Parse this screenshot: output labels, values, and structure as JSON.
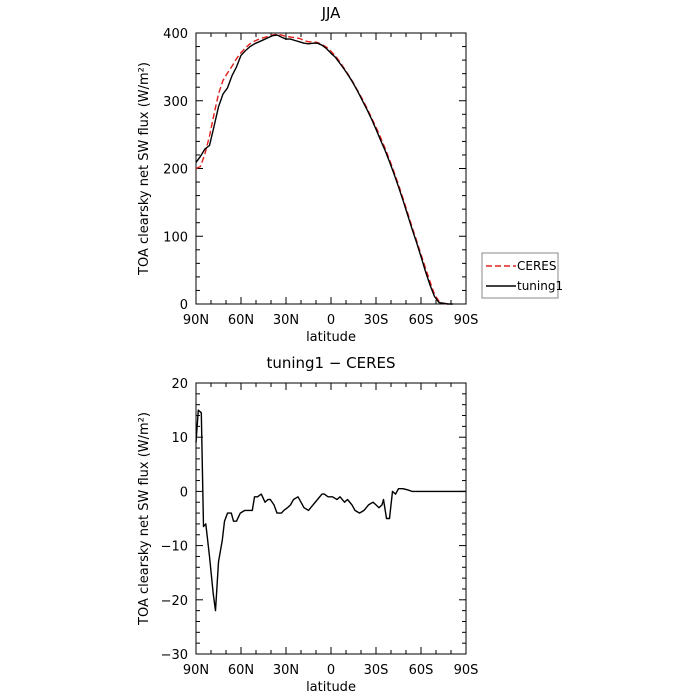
{
  "chart_data": [
    {
      "type": "line",
      "title": "JJA",
      "xlabel": "latitude",
      "ylabel": "TOA clearsky net SW flux (W/m²)",
      "xlim": [
        90,
        -90
      ],
      "ylim": [
        0,
        400
      ],
      "xticks": [
        90,
        60,
        30,
        0,
        -30,
        -60,
        -90
      ],
      "xticklabels": [
        "90N",
        "60N",
        "30N",
        "0",
        "30S",
        "60S",
        "90S"
      ],
      "yticks": [
        0,
        100,
        200,
        300,
        400
      ],
      "yticklabels": [
        "0",
        "100",
        "200",
        "300",
        "400"
      ],
      "grid": false,
      "legend": "right",
      "series": [
        {
          "name": "CERES",
          "color": "#e0201b",
          "dash": "dashed",
          "points": [
            [
              90,
              200
            ],
            [
              87,
              203
            ],
            [
              84,
              222
            ],
            [
              81,
              248
            ],
            [
              78,
              280
            ],
            [
              75,
              310
            ],
            [
              72,
              330
            ],
            [
              69,
              341
            ],
            [
              66,
              351
            ],
            [
              63,
              362
            ],
            [
              60,
              371
            ],
            [
              57,
              378
            ],
            [
              54,
              384
            ],
            [
              51,
              388
            ],
            [
              48,
              391
            ],
            [
              45,
              393
            ],
            [
              42,
              395
            ],
            [
              39,
              397
            ],
            [
              36,
              398
            ],
            [
              33,
              397
            ],
            [
              30,
              395
            ],
            [
              27,
              394
            ],
            [
              24,
              393
            ],
            [
              21,
              392
            ],
            [
              18,
              389
            ],
            [
              15,
              387
            ],
            [
              12,
              387
            ],
            [
              9,
              386
            ],
            [
              6,
              383
            ],
            [
              3,
              379
            ],
            [
              0,
              373
            ],
            [
              -3,
              366
            ],
            [
              -6,
              357
            ],
            [
              -9,
              347
            ],
            [
              -12,
              337
            ],
            [
              -15,
              326
            ],
            [
              -18,
              314
            ],
            [
              -21,
              302
            ],
            [
              -24,
              289
            ],
            [
              -27,
              275
            ],
            [
              -30,
              261
            ],
            [
              -33,
              246
            ],
            [
              -36,
              230
            ],
            [
              -39,
              213
            ],
            [
              -42,
              195
            ],
            [
              -45,
              176
            ],
            [
              -48,
              156
            ],
            [
              -51,
              135
            ],
            [
              -54,
              114
            ],
            [
              -57,
              94
            ],
            [
              -60,
              73
            ],
            [
              -63,
              53
            ],
            [
              -66,
              33
            ],
            [
              -69,
              14
            ],
            [
              -72,
              4
            ],
            [
              -75,
              1
            ],
            [
              -78,
              0
            ],
            [
              -81,
              0
            ]
          ]
        },
        {
          "name": "tuning1",
          "color": "#000000",
          "dash": "solid",
          "points": [
            [
              90,
              209
            ],
            [
              87,
              218
            ],
            [
              84,
              229
            ],
            [
              81,
              234
            ],
            [
              78,
              262
            ],
            [
              75,
              291
            ],
            [
              72,
              310
            ],
            [
              69,
              319
            ],
            [
              66,
              337
            ],
            [
              63,
              350
            ],
            [
              60,
              367
            ],
            [
              57,
              374
            ],
            [
              54,
              380
            ],
            [
              51,
              384
            ],
            [
              48,
              387
            ],
            [
              45,
              390
            ],
            [
              42,
              393
            ],
            [
              39,
              396
            ],
            [
              36,
              397
            ],
            [
              33,
              394
            ],
            [
              30,
              391
            ],
            [
              27,
              391
            ],
            [
              24,
              389
            ],
            [
              21,
              387
            ],
            [
              18,
              385
            ],
            [
              15,
              384
            ],
            [
              12,
              385
            ],
            [
              9,
              385
            ],
            [
              6,
              382
            ],
            [
              3,
              377
            ],
            [
              0,
              370
            ],
            [
              -3,
              364
            ],
            [
              -6,
              355
            ],
            [
              -9,
              346
            ],
            [
              -12,
              336
            ],
            [
              -15,
              325
            ],
            [
              -18,
              313
            ],
            [
              -21,
              300
            ],
            [
              -24,
              287
            ],
            [
              -27,
              273
            ],
            [
              -30,
              258
            ],
            [
              -33,
              242
            ],
            [
              -36,
              227
            ],
            [
              -39,
              210
            ],
            [
              -42,
              192
            ],
            [
              -45,
              173
            ],
            [
              -48,
              153
            ],
            [
              -51,
              132
            ],
            [
              -54,
              111
            ],
            [
              -57,
              91
            ],
            [
              -60,
              70
            ],
            [
              -63,
              48
            ],
            [
              -66,
              28
            ],
            [
              -69,
              11
            ],
            [
              -72,
              2
            ],
            [
              -75,
              1
            ],
            [
              -78,
              0
            ],
            [
              -81,
              0
            ]
          ]
        }
      ]
    },
    {
      "type": "line",
      "title": "tuning1 − CERES",
      "xlabel": "latitude",
      "ylabel": "TOA clearsky net SW flux (W/m²)",
      "xlim": [
        90,
        -90
      ],
      "ylim": [
        -30,
        20
      ],
      "xticks": [
        90,
        60,
        30,
        0,
        -30,
        -60,
        -90
      ],
      "xticklabels": [
        "90N",
        "60N",
        "30N",
        "0",
        "30S",
        "60S",
        "90S"
      ],
      "yticks": [
        -30,
        -20,
        -10,
        0,
        10,
        20
      ],
      "yticklabels": [
        "−30",
        "−20",
        "−10",
        "0",
        "10",
        "20"
      ],
      "grid": false,
      "series": [
        {
          "color": "#000000",
          "dash": "solid",
          "points": [
            [
              90,
              9
            ],
            [
              88.5,
              15
            ],
            [
              86.5,
              14.5
            ],
            [
              85,
              -6.5
            ],
            [
              83.5,
              -6
            ],
            [
              81,
              -12
            ],
            [
              78.5,
              -19
            ],
            [
              77,
              -22
            ],
            [
              75,
              -13
            ],
            [
              72.5,
              -9
            ],
            [
              71,
              -5.5
            ],
            [
              69,
              -4
            ],
            [
              66.5,
              -4
            ],
            [
              65,
              -5.5
            ],
            [
              63,
              -5.5
            ],
            [
              60.5,
              -4
            ],
            [
              57.5,
              -3.5
            ],
            [
              54.5,
              -3.5
            ],
            [
              52.5,
              -3.5
            ],
            [
              51,
              -1
            ],
            [
              49,
              -1
            ],
            [
              46.5,
              -0.5
            ],
            [
              44,
              -2
            ],
            [
              42,
              -1.5
            ],
            [
              40.5,
              -1.5
            ],
            [
              38,
              -2.5
            ],
            [
              36,
              -4
            ],
            [
              33,
              -4
            ],
            [
              31.5,
              -3.5
            ],
            [
              29,
              -3
            ],
            [
              27,
              -2.5
            ],
            [
              25,
              -1.5
            ],
            [
              22,
              -1
            ],
            [
              20,
              -2
            ],
            [
              18,
              -3
            ],
            [
              15,
              -3.5
            ],
            [
              12,
              -2.5
            ],
            [
              9,
              -1.5
            ],
            [
              6,
              -0.5
            ],
            [
              4.5,
              -0.5
            ],
            [
              2,
              -1
            ],
            [
              -1,
              -1
            ],
            [
              -4,
              -1.5
            ],
            [
              -6,
              -1
            ],
            [
              -9,
              -2
            ],
            [
              -11,
              -1.5
            ],
            [
              -14,
              -2.5
            ],
            [
              -16,
              -3.5
            ],
            [
              -19,
              -4
            ],
            [
              -22,
              -3.5
            ],
            [
              -25,
              -2.5
            ],
            [
              -28,
              -2
            ],
            [
              -30,
              -2.5
            ],
            [
              -32,
              -3
            ],
            [
              -34,
              -2.5
            ],
            [
              -35,
              -1.5
            ],
            [
              -37,
              -5
            ],
            [
              -39,
              -5
            ],
            [
              -41,
              0
            ],
            [
              -43,
              -0.5
            ],
            [
              -45,
              0.5
            ],
            [
              -48,
              0.5
            ],
            [
              -51,
              0.3
            ],
            [
              -54,
              0
            ],
            [
              -58,
              0
            ],
            [
              -63,
              0
            ],
            [
              -75,
              0
            ],
            [
              -90,
              0
            ]
          ]
        }
      ]
    }
  ]
}
